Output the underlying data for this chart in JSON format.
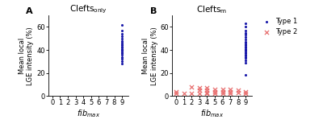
{
  "panel_A": {
    "title": "Clefts",
    "title_sub": "only",
    "blue_dots": {
      "x": [
        9,
        9,
        9,
        9,
        9,
        9,
        9,
        9,
        9,
        9,
        9,
        9,
        9,
        9,
        9,
        9,
        9,
        9,
        9,
        9,
        9
      ],
      "y": [
        28,
        30,
        32,
        34,
        36,
        37,
        38,
        39,
        40,
        41,
        42,
        43,
        44,
        45,
        46,
        48,
        50,
        52,
        54,
        57,
        62
      ]
    }
  },
  "panel_B": {
    "title": "Clefts",
    "title_sub": "m",
    "blue_dots": {
      "x": [
        9,
        9,
        9,
        9,
        9,
        9,
        9,
        9,
        9,
        9,
        9,
        9,
        9,
        9,
        9,
        9,
        9,
        9,
        9,
        9,
        9,
        9,
        9,
        9,
        9
      ],
      "y": [
        18,
        29,
        31,
        33,
        34,
        35,
        36,
        37,
        38,
        39,
        40,
        41,
        42,
        43,
        44,
        45,
        46,
        47,
        49,
        51,
        53,
        55,
        57,
        60,
        63
      ]
    },
    "red_crosses": {
      "x": [
        0,
        0,
        1,
        2,
        2,
        3,
        3,
        3,
        4,
        4,
        4,
        4,
        5,
        5,
        5,
        6,
        6,
        6,
        7,
        7,
        7,
        8,
        8,
        9,
        9
      ],
      "y": [
        2,
        4,
        2,
        2,
        8,
        2,
        5,
        7,
        2,
        3,
        5,
        7,
        2,
        4,
        6,
        2,
        4,
        6,
        2,
        4,
        6,
        3,
        5,
        2,
        4
      ]
    }
  },
  "ylabel_line1": "Mean local",
  "ylabel_line2": "LGE intensity (%)",
  "xlim": [
    -0.5,
    9.8
  ],
  "ylim": [
    0,
    70
  ],
  "xticks": [
    0,
    1,
    2,
    3,
    4,
    5,
    6,
    7,
    8,
    9
  ],
  "yticks": [
    0,
    20,
    40,
    60
  ],
  "blue_color": "#1a1aaa",
  "red_color": "#e87070",
  "bg_color": "#ffffff",
  "label_type1": "Type 1",
  "label_type2": "Type 2"
}
